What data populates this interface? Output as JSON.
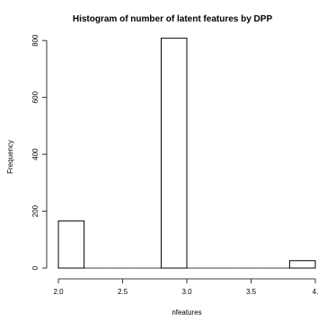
{
  "chart_data": {
    "type": "bar",
    "title": "Histogram of number of latent features by DPP",
    "xlabel": "nfeatures",
    "ylabel": "Frequency",
    "xlim": [
      2.0,
      4.0
    ],
    "ylim": [
      0,
      810
    ],
    "x_ticks": [
      2.0,
      2.5,
      3.0,
      3.5,
      4.0
    ],
    "x_tick_labels": [
      "2.0",
      "2.5",
      "3.0",
      "3.5",
      "4."
    ],
    "y_ticks": [
      0,
      200,
      400,
      600,
      800
    ],
    "y_tick_labels": [
      "0",
      "200",
      "400",
      "600",
      "800"
    ],
    "bins": [
      {
        "x0": 2.0,
        "x1": 2.2,
        "value": 166
      },
      {
        "x0": 2.2,
        "x1": 2.4,
        "value": 0
      },
      {
        "x0": 2.4,
        "x1": 2.6,
        "value": 0
      },
      {
        "x0": 2.6,
        "x1": 2.8,
        "value": 0
      },
      {
        "x0": 2.8,
        "x1": 3.0,
        "value": 808
      },
      {
        "x0": 3.0,
        "x1": 3.2,
        "value": 0
      },
      {
        "x0": 3.2,
        "x1": 3.4,
        "value": 0
      },
      {
        "x0": 3.4,
        "x1": 3.6,
        "value": 0
      },
      {
        "x0": 3.6,
        "x1": 3.8,
        "value": 0
      },
      {
        "x0": 3.8,
        "x1": 4.0,
        "value": 26
      }
    ],
    "grid": false,
    "bar_fill": "#ffffff",
    "bar_stroke": "#000000"
  }
}
